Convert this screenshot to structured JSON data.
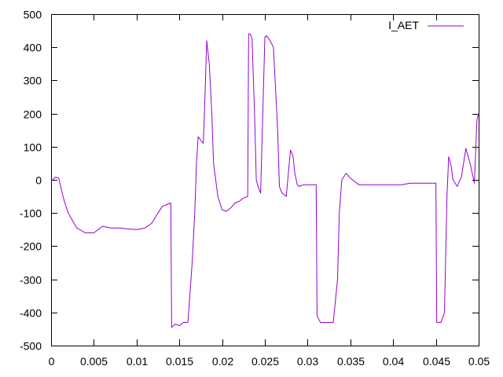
{
  "chart_data": {
    "type": "line",
    "title": "",
    "xlabel": "",
    "ylabel": "",
    "xlim": [
      0,
      0.05
    ],
    "ylim": [
      -500,
      500
    ],
    "x_ticks": [
      0,
      0.005,
      0.01,
      0.015,
      0.02,
      0.025,
      0.03,
      0.035,
      0.04,
      0.045,
      0.05
    ],
    "x_tick_labels": [
      "0",
      "0.005",
      "0.01",
      "0.015",
      "0.02",
      "0.025",
      "0.03",
      "0.035",
      "0.04",
      "0.045",
      "0.05"
    ],
    "y_ticks": [
      -500,
      -400,
      -300,
      -200,
      -100,
      0,
      100,
      200,
      300,
      400,
      500
    ],
    "y_tick_labels": [
      "-500",
      "-400",
      "-300",
      "-200",
      "-100",
      "0",
      "100",
      "200",
      "300",
      "400",
      "500"
    ],
    "grid": false,
    "legend_position": "top-right",
    "series": [
      {
        "name": "I_AET",
        "color": "#9400d3",
        "x": [
          0,
          0.0005,
          0.0009,
          0.0012,
          0.0015,
          0.002,
          0.003,
          0.004,
          0.005,
          0.0055,
          0.006,
          0.007,
          0.008,
          0.009,
          0.01,
          0.011,
          0.0118,
          0.0125,
          0.013,
          0.0135,
          0.014,
          0.0141,
          0.01412,
          0.0145,
          0.015,
          0.0155,
          0.016,
          0.0165,
          0.0168,
          0.017,
          0.0172,
          0.0175,
          0.0178,
          0.018,
          0.0182,
          0.0185,
          0.0188,
          0.019,
          0.0195,
          0.02,
          0.0205,
          0.021,
          0.0215,
          0.022,
          0.0225,
          0.023,
          0.0231,
          0.0233,
          0.0235,
          0.0238,
          0.024,
          0.0242,
          0.0245,
          0.025,
          0.0252,
          0.0253,
          0.0255,
          0.026,
          0.0265,
          0.0267,
          0.027,
          0.0275,
          0.028,
          0.0283,
          0.0285,
          0.0288,
          0.029,
          0.0295,
          0.03,
          0.031,
          0.0311,
          0.0313,
          0.0315,
          0.032,
          0.033,
          0.0335,
          0.0337,
          0.034,
          0.0345,
          0.035,
          0.036,
          0.037,
          0.038,
          0.039,
          0.04,
          0.041,
          0.042,
          0.043,
          0.044,
          0.045,
          0.0451,
          0.0453,
          0.0456,
          0.046,
          0.0463,
          0.0465,
          0.0468,
          0.047,
          0.0475,
          0.048,
          0.0485,
          0.049,
          0.0495,
          0.0498,
          0.05
        ],
        "values": [
          -5,
          8,
          5,
          -30,
          -60,
          -100,
          -145,
          -160,
          -160,
          -150,
          -140,
          -145,
          -145,
          -148,
          -150,
          -145,
          -130,
          -100,
          -80,
          -75,
          -70,
          -440,
          -445,
          -435,
          -440,
          -430,
          -430,
          -250,
          -100,
          50,
          130,
          120,
          110,
          250,
          420,
          350,
          200,
          50,
          -50,
          -90,
          -95,
          -85,
          -70,
          -65,
          -55,
          -50,
          440,
          440,
          425,
          200,
          0,
          -20,
          -40,
          430,
          435,
          430,
          425,
          400,
          150,
          -20,
          -40,
          -50,
          90,
          70,
          20,
          -15,
          -20,
          -15,
          -15,
          -15,
          -410,
          -420,
          -430,
          -430,
          -430,
          -300,
          -100,
          0,
          20,
          5,
          -15,
          -15,
          -15,
          -15,
          -15,
          -15,
          -10,
          -10,
          -10,
          -10,
          -430,
          -430,
          -430,
          -400,
          -50,
          70,
          40,
          0,
          -20,
          10,
          95,
          50,
          -10,
          180,
          200
        ]
      }
    ]
  }
}
